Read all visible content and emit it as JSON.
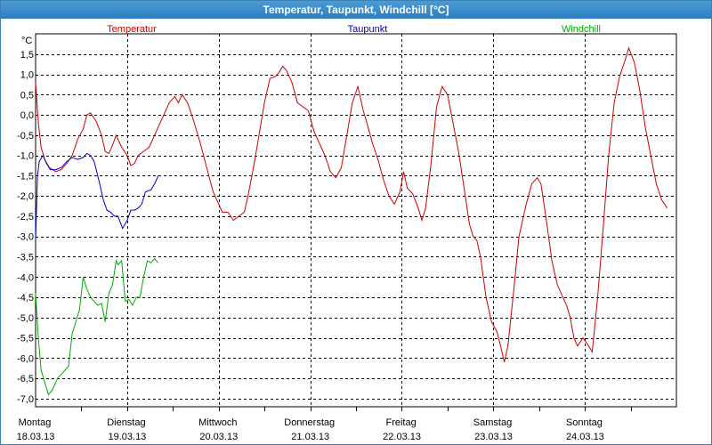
{
  "window": {
    "title": "Temperatur, Taupunkt, Windchill [°C]"
  },
  "colors": {
    "temperature": "#cc0000",
    "dewpoint": "#0000cc",
    "windchill": "#00aa00",
    "grid": "#000000",
    "title_bar": "#2f7fbf"
  },
  "chart_data": {
    "type": "line",
    "title": "Temperatur, Taupunkt, Windchill [°C]",
    "unit_label": "°C",
    "ylim": [
      -7.2,
      2.0
    ],
    "xlim": [
      0,
      7.0
    ],
    "grid": true,
    "legend": [
      "Temperatur",
      "Taupunkt",
      "Windchill"
    ],
    "y_ticks": [
      1.5,
      1.0,
      0.5,
      0.0,
      -0.5,
      -1.0,
      -1.5,
      -2.0,
      -2.5,
      -3.0,
      -3.5,
      -4.0,
      -4.5,
      -5.0,
      -5.5,
      -6.0,
      -6.5,
      -7.0
    ],
    "y_tick_labels": [
      "1,5",
      "1,0",
      "0,5",
      "0,0",
      "-0,5",
      "-1,0",
      "-1,5",
      "-2,0",
      "-2,5",
      "-3,0",
      "-3,5",
      "-4,0",
      "-4,5",
      "-5,0",
      "-5,5",
      "-6,0",
      "-6,5",
      "-7,0"
    ],
    "x_minor_ticks": [
      0.5,
      1.5,
      2.5,
      3.5,
      4.5,
      5.5,
      6.5
    ],
    "x_major_ticks": [
      1,
      2,
      3,
      4,
      5,
      6
    ],
    "days": [
      {
        "name": "Montag",
        "date": "18.03.13"
      },
      {
        "name": "Dienstag",
        "date": "19.03.13"
      },
      {
        "name": "Mittwoch",
        "date": "20.03.13"
      },
      {
        "name": "Donnerstag",
        "date": "21.03.13"
      },
      {
        "name": "Freitag",
        "date": "22.03.13"
      },
      {
        "name": "Samstag",
        "date": "23.03.13"
      },
      {
        "name": "Sonntag",
        "date": "24.03.13"
      }
    ],
    "series": [
      {
        "name": "Temperatur",
        "color": "#cc0000",
        "points": [
          [
            0.0,
            0.8
          ],
          [
            0.03,
            -0.2
          ],
          [
            0.06,
            -0.8
          ],
          [
            0.1,
            -1.1
          ],
          [
            0.15,
            -1.3
          ],
          [
            0.22,
            -1.4
          ],
          [
            0.28,
            -1.35
          ],
          [
            0.34,
            -1.2
          ],
          [
            0.4,
            -1.0
          ],
          [
            0.46,
            -0.6
          ],
          [
            0.52,
            -0.35
          ],
          [
            0.56,
            0.0
          ],
          [
            0.6,
            0.05
          ],
          [
            0.66,
            -0.15
          ],
          [
            0.72,
            -0.5
          ],
          [
            0.76,
            -0.9
          ],
          [
            0.8,
            -0.95
          ],
          [
            0.84,
            -0.75
          ],
          [
            0.88,
            -0.5
          ],
          [
            0.94,
            -0.8
          ],
          [
            1.0,
            -1.0
          ],
          [
            1.04,
            -1.25
          ],
          [
            1.08,
            -1.2
          ],
          [
            1.12,
            -1.0
          ],
          [
            1.18,
            -0.9
          ],
          [
            1.24,
            -0.8
          ],
          [
            1.28,
            -0.6
          ],
          [
            1.34,
            -0.3
          ],
          [
            1.4,
            0.0
          ],
          [
            1.46,
            0.3
          ],
          [
            1.52,
            0.45
          ],
          [
            1.56,
            0.3
          ],
          [
            1.6,
            0.5
          ],
          [
            1.66,
            0.3
          ],
          [
            1.72,
            -0.1
          ],
          [
            1.8,
            -0.7
          ],
          [
            1.88,
            -1.4
          ],
          [
            1.94,
            -1.9
          ],
          [
            2.0,
            -2.2
          ],
          [
            2.04,
            -2.4
          ],
          [
            2.1,
            -2.4
          ],
          [
            2.16,
            -2.6
          ],
          [
            2.22,
            -2.5
          ],
          [
            2.28,
            -2.4
          ],
          [
            2.32,
            -2.0
          ],
          [
            2.38,
            -1.3
          ],
          [
            2.44,
            -0.5
          ],
          [
            2.5,
            0.3
          ],
          [
            2.56,
            0.9
          ],
          [
            2.62,
            0.95
          ],
          [
            2.66,
            1.05
          ],
          [
            2.7,
            1.2
          ],
          [
            2.74,
            1.1
          ],
          [
            2.8,
            0.8
          ],
          [
            2.86,
            0.3
          ],
          [
            2.92,
            0.2
          ],
          [
            2.98,
            0.1
          ],
          [
            3.04,
            -0.4
          ],
          [
            3.1,
            -0.7
          ],
          [
            3.16,
            -1.0
          ],
          [
            3.22,
            -1.4
          ],
          [
            3.28,
            -1.55
          ],
          [
            3.34,
            -1.3
          ],
          [
            3.4,
            -0.5
          ],
          [
            3.46,
            0.3
          ],
          [
            3.52,
            0.7
          ],
          [
            3.58,
            0.1
          ],
          [
            3.62,
            -0.2
          ],
          [
            3.68,
            -0.7
          ],
          [
            3.74,
            -1.1
          ],
          [
            3.8,
            -1.6
          ],
          [
            3.86,
            -2.0
          ],
          [
            3.92,
            -2.2
          ],
          [
            3.98,
            -1.9
          ],
          [
            4.02,
            -1.4
          ],
          [
            4.06,
            -1.8
          ],
          [
            4.12,
            -1.95
          ],
          [
            4.18,
            -2.3
          ],
          [
            4.22,
            -2.6
          ],
          [
            4.26,
            -2.3
          ],
          [
            4.32,
            -1.2
          ],
          [
            4.38,
            0.2
          ],
          [
            4.44,
            0.7
          ],
          [
            4.5,
            0.5
          ],
          [
            4.56,
            -0.2
          ],
          [
            4.62,
            -0.9
          ],
          [
            4.68,
            -1.8
          ],
          [
            4.74,
            -2.7
          ],
          [
            4.78,
            -3.0
          ],
          [
            4.82,
            -3.1
          ],
          [
            4.86,
            -3.5
          ],
          [
            4.92,
            -4.5
          ],
          [
            4.98,
            -5.1
          ],
          [
            5.04,
            -5.35
          ],
          [
            5.08,
            -5.7
          ],
          [
            5.12,
            -6.1
          ],
          [
            5.16,
            -5.7
          ],
          [
            5.22,
            -4.4
          ],
          [
            5.28,
            -3.0
          ],
          [
            5.36,
            -2.2
          ],
          [
            5.42,
            -1.7
          ],
          [
            5.48,
            -1.55
          ],
          [
            5.52,
            -1.7
          ],
          [
            5.58,
            -2.6
          ],
          [
            5.64,
            -3.6
          ],
          [
            5.7,
            -4.2
          ],
          [
            5.76,
            -4.5
          ],
          [
            5.8,
            -4.7
          ],
          [
            5.84,
            -5.0
          ],
          [
            5.88,
            -5.5
          ],
          [
            5.92,
            -5.7
          ],
          [
            5.98,
            -5.5
          ],
          [
            6.04,
            -5.7
          ],
          [
            6.08,
            -5.85
          ],
          [
            6.14,
            -4.5
          ],
          [
            6.2,
            -2.8
          ],
          [
            6.26,
            -1.0
          ],
          [
            6.32,
            0.3
          ],
          [
            6.38,
            0.95
          ],
          [
            6.44,
            1.35
          ],
          [
            6.48,
            1.65
          ],
          [
            6.54,
            1.3
          ],
          [
            6.6,
            0.6
          ],
          [
            6.66,
            -0.3
          ],
          [
            6.72,
            -1.0
          ],
          [
            6.78,
            -1.7
          ],
          [
            6.84,
            -2.1
          ],
          [
            6.9,
            -2.3
          ]
        ]
      },
      {
        "name": "Taupunkt",
        "color": "#0000cc",
        "points": [
          [
            0.0,
            -3.1
          ],
          [
            0.02,
            -1.5
          ],
          [
            0.04,
            -1.15
          ],
          [
            0.08,
            -1.0
          ],
          [
            0.12,
            -1.2
          ],
          [
            0.16,
            -1.35
          ],
          [
            0.22,
            -1.35
          ],
          [
            0.28,
            -1.3
          ],
          [
            0.34,
            -1.15
          ],
          [
            0.4,
            -1.05
          ],
          [
            0.46,
            -1.1
          ],
          [
            0.52,
            -1.05
          ],
          [
            0.56,
            -0.95
          ],
          [
            0.6,
            -1.0
          ],
          [
            0.64,
            -1.15
          ],
          [
            0.7,
            -1.7
          ],
          [
            0.74,
            -2.1
          ],
          [
            0.78,
            -2.35
          ],
          [
            0.82,
            -2.4
          ],
          [
            0.86,
            -2.5
          ],
          [
            0.9,
            -2.5
          ],
          [
            0.95,
            -2.8
          ],
          [
            1.0,
            -2.6
          ],
          [
            1.04,
            -2.35
          ],
          [
            1.08,
            -2.35
          ],
          [
            1.12,
            -2.3
          ],
          [
            1.16,
            -2.2
          ],
          [
            1.2,
            -1.9
          ],
          [
            1.26,
            -1.85
          ],
          [
            1.3,
            -1.7
          ],
          [
            1.34,
            -1.5
          ]
        ]
      },
      {
        "name": "Windchill",
        "color": "#00aa00",
        "points": [
          [
            0.0,
            -4.4
          ],
          [
            0.03,
            -5.5
          ],
          [
            0.06,
            -6.3
          ],
          [
            0.1,
            -6.6
          ],
          [
            0.14,
            -6.9
          ],
          [
            0.18,
            -6.8
          ],
          [
            0.24,
            -6.5
          ],
          [
            0.3,
            -6.35
          ],
          [
            0.36,
            -6.2
          ],
          [
            0.4,
            -5.4
          ],
          [
            0.44,
            -5.1
          ],
          [
            0.48,
            -4.8
          ],
          [
            0.52,
            -4.0
          ],
          [
            0.56,
            -4.3
          ],
          [
            0.6,
            -4.5
          ],
          [
            0.64,
            -4.6
          ],
          [
            0.68,
            -4.7
          ],
          [
            0.72,
            -4.65
          ],
          [
            0.76,
            -5.1
          ],
          [
            0.8,
            -4.4
          ],
          [
            0.84,
            -4.2
          ],
          [
            0.88,
            -3.6
          ],
          [
            0.9,
            -3.7
          ],
          [
            0.94,
            -3.6
          ],
          [
            0.98,
            -4.6
          ],
          [
            1.02,
            -4.55
          ],
          [
            1.06,
            -4.7
          ],
          [
            1.1,
            -4.5
          ],
          [
            1.14,
            -4.5
          ],
          [
            1.18,
            -4.0
          ],
          [
            1.22,
            -3.6
          ],
          [
            1.26,
            -3.65
          ],
          [
            1.3,
            -3.55
          ],
          [
            1.34,
            -3.65
          ]
        ]
      }
    ]
  }
}
